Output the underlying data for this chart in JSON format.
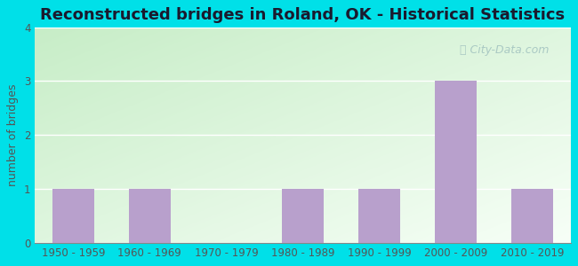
{
  "title": "Reconstructed bridges in Roland, OK - Historical Statistics",
  "categories": [
    "1950 - 1959",
    "1960 - 1969",
    "1970 - 1979",
    "1980 - 1989",
    "1990 - 1999",
    "2000 - 2009",
    "2010 - 2019"
  ],
  "values": [
    1,
    1,
    0,
    1,
    1,
    3,
    1
  ],
  "bar_color": "#b8a0cc",
  "ylabel": "number of bridges",
  "ylim": [
    0,
    4
  ],
  "yticks": [
    0,
    1,
    2,
    3,
    4
  ],
  "background_outer": "#00e0e8",
  "title_fontsize": 13,
  "axis_label_fontsize": 9,
  "tick_fontsize": 8.5,
  "watermark": " City-Data.com",
  "watermark_icon": "@",
  "grid_color": "#ffffff",
  "title_color": "#1a1a2e",
  "tick_color": "#555555",
  "ylabel_color": "#555555"
}
